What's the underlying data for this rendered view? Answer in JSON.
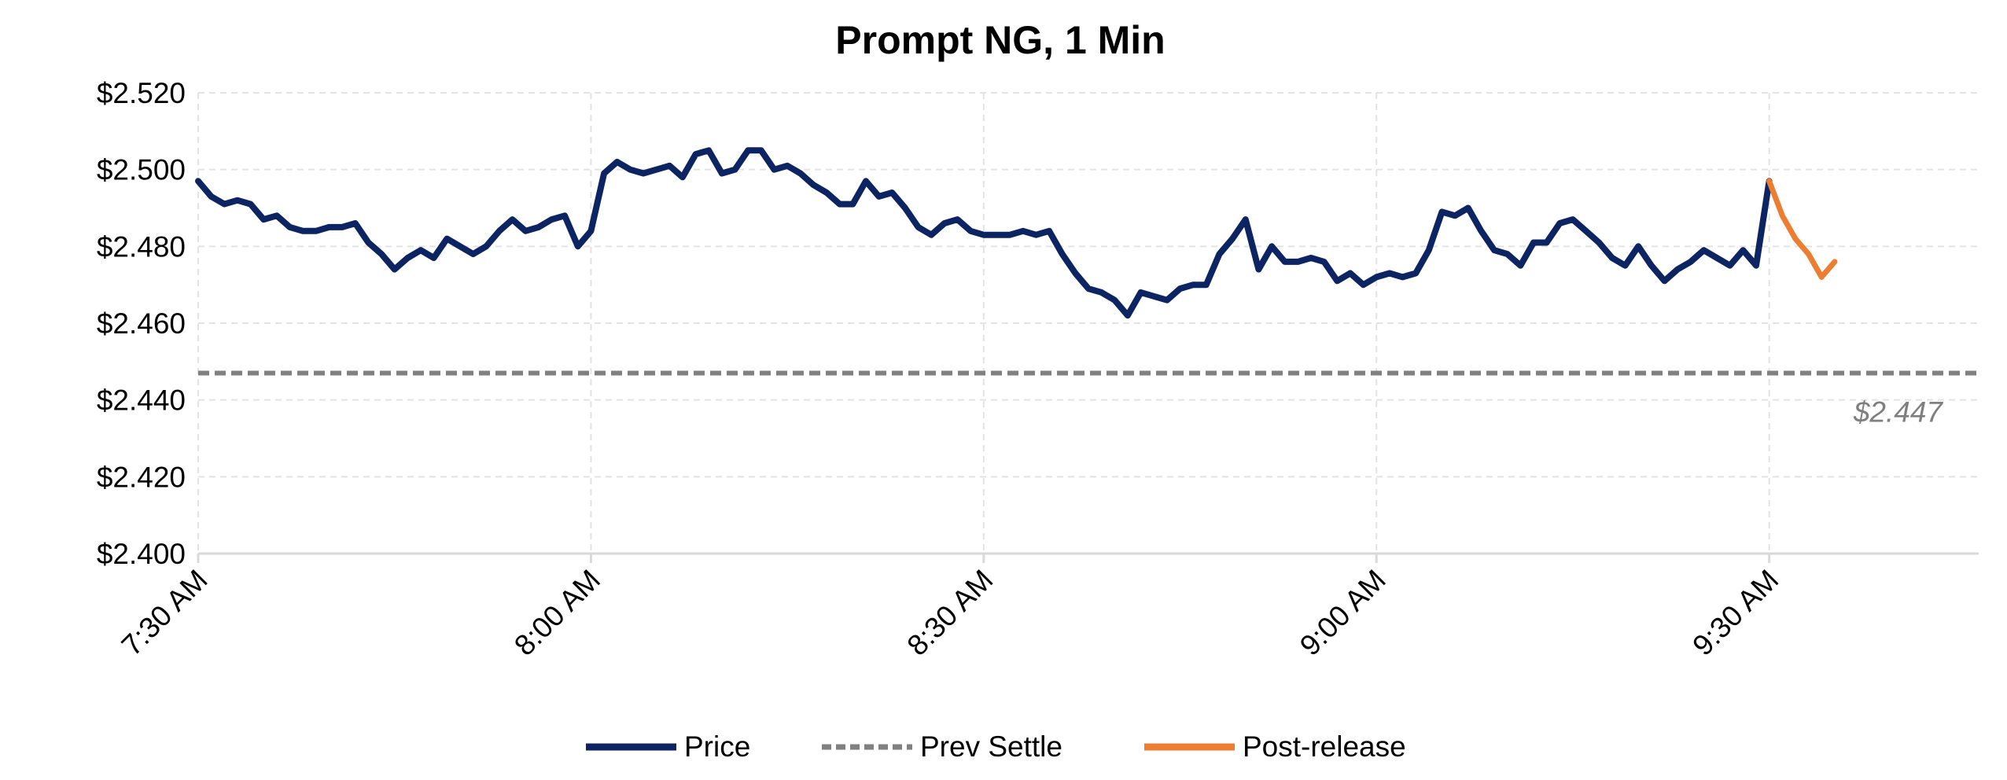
{
  "chart_data": {
    "type": "line",
    "title": "Prompt NG, 1 Min",
    "xlabel": "",
    "ylabel": "",
    "x_unit": "minutes since 7:30 AM",
    "xlim": [
      0,
      136
    ],
    "ylim": [
      2.4,
      2.52
    ],
    "y_ticks": [
      2.4,
      2.42,
      2.44,
      2.46,
      2.48,
      2.5,
      2.52
    ],
    "y_tick_labels": [
      "$2.400",
      "$2.420",
      "$2.440",
      "$2.460",
      "$2.480",
      "$2.500",
      "$2.520"
    ],
    "x_ticks": [
      0,
      30,
      60,
      90,
      120
    ],
    "x_tick_labels": [
      "7:30 AM",
      "8:00 AM",
      "8:30 AM",
      "9:00 AM",
      "9:30 AM"
    ],
    "grid": true,
    "legend_position": "bottom",
    "series": [
      {
        "name": "Price",
        "color": "#0d2463",
        "style": "solid",
        "x_start": 0,
        "values": [
          2.497,
          2.493,
          2.491,
          2.492,
          2.491,
          2.487,
          2.488,
          2.485,
          2.484,
          2.484,
          2.485,
          2.485,
          2.486,
          2.481,
          2.478,
          2.474,
          2.477,
          2.479,
          2.477,
          2.482,
          2.48,
          2.478,
          2.48,
          2.484,
          2.487,
          2.484,
          2.485,
          2.487,
          2.488,
          2.48,
          2.484,
          2.499,
          2.502,
          2.5,
          2.499,
          2.5,
          2.501,
          2.498,
          2.504,
          2.505,
          2.499,
          2.5,
          2.505,
          2.505,
          2.5,
          2.501,
          2.499,
          2.496,
          2.494,
          2.491,
          2.491,
          2.497,
          2.493,
          2.494,
          2.49,
          2.485,
          2.483,
          2.486,
          2.487,
          2.484,
          2.483,
          2.483,
          2.483,
          2.484,
          2.483,
          2.484,
          2.478,
          2.473,
          2.469,
          2.468,
          2.466,
          2.462,
          2.468,
          2.467,
          2.466,
          2.469,
          2.47,
          2.47,
          2.478,
          2.482,
          2.487,
          2.474,
          2.48,
          2.476,
          2.476,
          2.477,
          2.476,
          2.471,
          2.473,
          2.47,
          2.472,
          2.473,
          2.472,
          2.473,
          2.479,
          2.489,
          2.488,
          2.49,
          2.484,
          2.479,
          2.478,
          2.475,
          2.481,
          2.481,
          2.486,
          2.487,
          2.484,
          2.481,
          2.477,
          2.475,
          2.48,
          2.475,
          2.471,
          2.474,
          2.476,
          2.479,
          2.477,
          2.475,
          2.479,
          2.475,
          2.497
        ]
      },
      {
        "name": "Prev Settle",
        "color": "#808080",
        "style": "dashed",
        "constant": 2.447,
        "label": "$2.447"
      },
      {
        "name": "Post-release",
        "color": "#ed7d31",
        "style": "solid",
        "x_start": 120,
        "values": [
          2.497,
          2.488,
          2.482,
          2.478,
          2.472,
          2.476
        ]
      }
    ]
  }
}
